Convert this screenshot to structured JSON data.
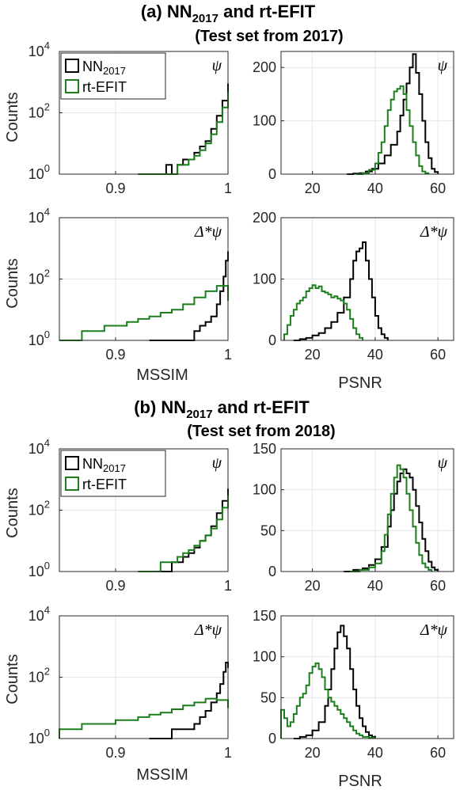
{
  "sections": [
    {
      "title_main": "(a) NN",
      "title_sub": "2017",
      "title_rest": " and rt-EFIT",
      "subtitle": "(Test set from 2017)"
    },
    {
      "title_main": "(b) NN",
      "title_sub": "2017",
      "title_rest": " and rt-EFIT",
      "subtitle": "(Test set from 2018)"
    }
  ],
  "legend": [
    {
      "label": "NN",
      "sub": "2017",
      "color": "#000000"
    },
    {
      "label": "rt-EFIT",
      "sub": "",
      "color": "#1a7f1a"
    }
  ],
  "axis_text": {
    "counts": "Counts",
    "mssim": "MSSIM",
    "psnr": "PSNR"
  },
  "chart_data": [
    {
      "id": "a-mssim-psi",
      "type": "histogram",
      "panel_label": "ψ",
      "yscale": "log",
      "xlim": [
        0.85,
        1.0
      ],
      "ylim": [
        1,
        10000
      ],
      "xticks": [
        {
          "v": 0.9,
          "t": "0.9"
        },
        {
          "v": 1.0,
          "t": "1"
        }
      ],
      "yticks": [
        {
          "v": 1,
          "b": "10",
          "e": "0"
        },
        {
          "v": 100,
          "b": "10",
          "e": "2"
        },
        {
          "v": 10000,
          "b": "10",
          "e": "4"
        }
      ],
      "legend": true,
      "grid": true,
      "series": [
        {
          "name": "NN2017",
          "color": "#000000",
          "x": [
            0.92,
            0.925,
            0.93,
            0.935,
            0.94,
            0.945,
            0.95,
            0.955,
            0.96,
            0.965,
            0.97,
            0.975,
            0.98,
            0.985,
            0.99,
            0.995,
            1.0
          ],
          "y": [
            1,
            1,
            1,
            1,
            1,
            2,
            1,
            2,
            3,
            3,
            5,
            8,
            12,
            30,
            80,
            250,
            900
          ]
        },
        {
          "name": "rt-EFIT",
          "color": "#1a7f1a",
          "x": [
            0.92,
            0.93,
            0.94,
            0.95,
            0.955,
            0.96,
            0.965,
            0.97,
            0.975,
            0.98,
            0.985,
            0.99,
            0.995,
            1.0
          ],
          "y": [
            1,
            1,
            1,
            1,
            2,
            2,
            3,
            4,
            6,
            10,
            20,
            50,
            150,
            500
          ]
        }
      ]
    },
    {
      "id": "a-psnr-psi",
      "type": "histogram",
      "panel_label": "ψ",
      "yscale": "linear",
      "xlim": [
        10,
        65
      ],
      "ylim": [
        0,
        230
      ],
      "xticks": [
        {
          "v": 20,
          "t": "20"
        },
        {
          "v": 40,
          "t": "40"
        },
        {
          "v": 60,
          "t": "60"
        }
      ],
      "yticks": [
        {
          "v": 0,
          "t": "0"
        },
        {
          "v": 100,
          "t": "100"
        },
        {
          "v": 200,
          "t": "200"
        }
      ],
      "legend": false,
      "grid": true,
      "series": [
        {
          "name": "NN2017",
          "color": "#000000",
          "x": [
            31,
            33,
            35,
            37,
            39,
            41,
            43,
            45,
            47,
            48,
            49,
            50,
            51,
            52,
            53,
            54,
            55,
            56,
            57,
            58,
            59,
            60
          ],
          "y": [
            0,
            1,
            2,
            5,
            10,
            20,
            35,
            55,
            80,
            110,
            140,
            170,
            200,
            225,
            190,
            150,
            100,
            60,
            30,
            10,
            4,
            0
          ]
        },
        {
          "name": "rt-EFIT",
          "color": "#1a7f1a",
          "x": [
            34,
            36,
            38,
            40,
            41,
            42,
            43,
            44,
            45,
            46,
            47,
            48,
            49,
            50,
            51,
            52,
            53,
            54,
            55,
            56,
            57
          ],
          "y": [
            0,
            2,
            8,
            20,
            40,
            60,
            90,
            120,
            140,
            155,
            160,
            165,
            150,
            120,
            90,
            60,
            35,
            15,
            5,
            2,
            0
          ]
        }
      ]
    },
    {
      "id": "a-mssim-dpsi",
      "type": "histogram",
      "panel_label": "Δ*ψ",
      "yscale": "log",
      "xlim": [
        0.85,
        1.0
      ],
      "ylim": [
        1,
        10000
      ],
      "xticks": [
        {
          "v": 0.9,
          "t": "0.9"
        },
        {
          "v": 1.0,
          "t": "1"
        }
      ],
      "yticks": [
        {
          "v": 1,
          "b": "10",
          "e": "0"
        },
        {
          "v": 100,
          "b": "10",
          "e": "2"
        },
        {
          "v": 10000,
          "b": "10",
          "e": "4"
        }
      ],
      "legend": false,
      "grid": true,
      "series": [
        {
          "name": "NN2017",
          "color": "#000000",
          "x": [
            0.93,
            0.94,
            0.95,
            0.96,
            0.97,
            0.975,
            0.98,
            0.985,
            0.99,
            0.993,
            0.996,
            0.998,
            1.0
          ],
          "y": [
            1,
            1,
            1,
            1,
            2,
            3,
            4,
            6,
            15,
            40,
            120,
            400,
            800
          ]
        },
        {
          "name": "rt-EFIT",
          "color": "#1a7f1a",
          "x": [
            0.85,
            0.86,
            0.87,
            0.88,
            0.89,
            0.9,
            0.91,
            0.92,
            0.93,
            0.94,
            0.95,
            0.96,
            0.97,
            0.98,
            0.99,
            1.0
          ],
          "y": [
            1,
            1,
            2,
            2,
            3,
            3,
            4,
            5,
            6,
            8,
            10,
            15,
            25,
            40,
            60,
            20
          ]
        }
      ]
    },
    {
      "id": "a-psnr-dpsi",
      "type": "histogram",
      "panel_label": "Δ*ψ",
      "yscale": "linear",
      "xlim": [
        10,
        65
      ],
      "ylim": [
        0,
        200
      ],
      "xticks": [
        {
          "v": 20,
          "t": "20"
        },
        {
          "v": 40,
          "t": "40"
        },
        {
          "v": 60,
          "t": "60"
        }
      ],
      "yticks": [
        {
          "v": 0,
          "t": "0"
        },
        {
          "v": 100,
          "t": "100"
        },
        {
          "v": 200,
          "t": "200"
        }
      ],
      "legend": false,
      "grid": true,
      "series": [
        {
          "name": "NN2017",
          "color": "#000000",
          "x": [
            14,
            16,
            18,
            20,
            22,
            24,
            26,
            28,
            30,
            32,
            33,
            34,
            35,
            36,
            37,
            38,
            39,
            40,
            41,
            42,
            43,
            44
          ],
          "y": [
            0,
            2,
            4,
            8,
            12,
            20,
            30,
            45,
            70,
            100,
            130,
            145,
            150,
            160,
            130,
            100,
            70,
            40,
            20,
            10,
            4,
            0
          ]
        },
        {
          "name": "rt-EFIT",
          "color": "#1a7f1a",
          "x": [
            11,
            12,
            13,
            14,
            15,
            16,
            17,
            18,
            19,
            20,
            21,
            22,
            23,
            24,
            25,
            26,
            27,
            28,
            29,
            30,
            31,
            32,
            33,
            34,
            35,
            36
          ],
          "y": [
            10,
            25,
            40,
            50,
            60,
            65,
            70,
            80,
            85,
            90,
            85,
            88,
            80,
            78,
            75,
            70,
            72,
            68,
            65,
            60,
            50,
            35,
            20,
            10,
            4,
            0
          ]
        }
      ]
    },
    {
      "id": "b-mssim-psi",
      "type": "histogram",
      "panel_label": "ψ",
      "yscale": "log",
      "xlim": [
        0.85,
        1.0
      ],
      "ylim": [
        1,
        10000
      ],
      "xticks": [
        {
          "v": 0.9,
          "t": "0.9"
        },
        {
          "v": 1.0,
          "t": "1"
        }
      ],
      "yticks": [
        {
          "v": 1,
          "b": "10",
          "e": "0"
        },
        {
          "v": 100,
          "b": "10",
          "e": "2"
        },
        {
          "v": 10000,
          "b": "10",
          "e": "4"
        }
      ],
      "legend": true,
      "grid": true,
      "series": [
        {
          "name": "NN2017",
          "color": "#000000",
          "x": [
            0.93,
            0.94,
            0.95,
            0.96,
            0.965,
            0.97,
            0.975,
            0.98,
            0.985,
            0.99,
            0.995,
            1.0
          ],
          "y": [
            1,
            1,
            2,
            3,
            4,
            6,
            10,
            15,
            30,
            80,
            200,
            500
          ]
        },
        {
          "name": "rt-EFIT",
          "color": "#1a7f1a",
          "x": [
            0.92,
            0.93,
            0.94,
            0.95,
            0.955,
            0.96,
            0.965,
            0.97,
            0.975,
            0.98,
            0.985,
            0.99,
            0.995,
            1.0
          ],
          "y": [
            1,
            1,
            2,
            2,
            3,
            4,
            5,
            7,
            10,
            15,
            25,
            50,
            120,
            300
          ]
        }
      ]
    },
    {
      "id": "b-psnr-psi",
      "type": "histogram",
      "panel_label": "ψ",
      "yscale": "linear",
      "xlim": [
        10,
        65
      ],
      "ylim": [
        0,
        150
      ],
      "xticks": [
        {
          "v": 20,
          "t": "20"
        },
        {
          "v": 40,
          "t": "40"
        },
        {
          "v": 60,
          "t": "60"
        }
      ],
      "yticks": [
        {
          "v": 0,
          "t": "0"
        },
        {
          "v": 50,
          "t": "50"
        },
        {
          "v": 100,
          "t": "100"
        },
        {
          "v": 150,
          "t": "150"
        }
      ],
      "legend": false,
      "grid": true,
      "series": [
        {
          "name": "NN2017",
          "color": "#000000",
          "x": [
            30,
            33,
            36,
            38,
            40,
            42,
            44,
            45,
            46,
            47,
            48,
            49,
            50,
            51,
            52,
            53,
            54,
            55,
            56,
            57,
            58,
            59,
            60
          ],
          "y": [
            0,
            2,
            4,
            8,
            15,
            30,
            55,
            75,
            95,
            110,
            120,
            125,
            120,
            115,
            100,
            80,
            60,
            40,
            25,
            12,
            5,
            2,
            0
          ]
        },
        {
          "name": "rt-EFIT",
          "color": "#1a7f1a",
          "x": [
            32,
            35,
            38,
            40,
            42,
            43,
            44,
            45,
            46,
            47,
            48,
            49,
            50,
            51,
            52,
            53,
            54,
            55,
            56,
            57,
            58
          ],
          "y": [
            0,
            2,
            5,
            10,
            25,
            45,
            70,
            95,
            115,
            130,
            125,
            115,
            95,
            75,
            55,
            35,
            20,
            10,
            5,
            2,
            0
          ]
        }
      ]
    },
    {
      "id": "b-mssim-dpsi",
      "type": "histogram",
      "panel_label": "Δ*ψ",
      "yscale": "log",
      "xlim": [
        0.85,
        1.0
      ],
      "ylim": [
        1,
        10000
      ],
      "xticks": [
        {
          "v": 0.9,
          "t": "0.9"
        },
        {
          "v": 1.0,
          "t": "1"
        }
      ],
      "yticks": [
        {
          "v": 1,
          "b": "10",
          "e": "0"
        },
        {
          "v": 100,
          "b": "10",
          "e": "2"
        },
        {
          "v": 10000,
          "b": "10",
          "e": "4"
        }
      ],
      "legend": false,
      "grid": true,
      "series": [
        {
          "name": "NN2017",
          "color": "#000000",
          "x": [
            0.93,
            0.94,
            0.95,
            0.96,
            0.97,
            0.975,
            0.98,
            0.985,
            0.99,
            0.993,
            0.996,
            0.998,
            1.0
          ],
          "y": [
            1,
            1,
            2,
            2,
            3,
            5,
            8,
            15,
            30,
            60,
            150,
            300,
            200
          ]
        },
        {
          "name": "rt-EFIT",
          "color": "#1a7f1a",
          "x": [
            0.85,
            0.86,
            0.87,
            0.88,
            0.89,
            0.9,
            0.91,
            0.92,
            0.93,
            0.94,
            0.95,
            0.96,
            0.97,
            0.98,
            0.99,
            1.0
          ],
          "y": [
            2,
            2,
            3,
            3,
            3,
            4,
            4,
            5,
            6,
            7,
            9,
            12,
            15,
            20,
            18,
            10
          ]
        }
      ]
    },
    {
      "id": "b-psnr-dpsi",
      "type": "histogram",
      "panel_label": "Δ*ψ",
      "yscale": "linear",
      "xlim": [
        10,
        65
      ],
      "ylim": [
        0,
        150
      ],
      "xticks": [
        {
          "v": 20,
          "t": "20"
        },
        {
          "v": 40,
          "t": "40"
        },
        {
          "v": 60,
          "t": "60"
        }
      ],
      "yticks": [
        {
          "v": 0,
          "t": "0"
        },
        {
          "v": 50,
          "t": "50"
        },
        {
          "v": 100,
          "t": "100"
        },
        {
          "v": 150,
          "t": "150"
        }
      ],
      "legend": false,
      "grid": true,
      "series": [
        {
          "name": "NN2017",
          "color": "#000000",
          "x": [
            14,
            16,
            18,
            20,
            22,
            24,
            25,
            26,
            27,
            28,
            29,
            30,
            31,
            32,
            33,
            34,
            35,
            36,
            37,
            38,
            39,
            40
          ],
          "y": [
            0,
            2,
            4,
            10,
            20,
            40,
            60,
            85,
            110,
            130,
            138,
            125,
            110,
            85,
            60,
            40,
            25,
            15,
            8,
            4,
            2,
            0
          ]
        },
        {
          "name": "rt-EFIT",
          "color": "#1a7f1a",
          "x": [
            10,
            11,
            12,
            13,
            14,
            15,
            16,
            17,
            18,
            19,
            20,
            21,
            22,
            23,
            24,
            25,
            26,
            27,
            28,
            29,
            30,
            31,
            32,
            33,
            34,
            35,
            36,
            38,
            40
          ],
          "y": [
            35,
            25,
            15,
            20,
            30,
            40,
            50,
            55,
            65,
            80,
            88,
            92,
            85,
            75,
            60,
            50,
            45,
            40,
            35,
            30,
            25,
            20,
            15,
            10,
            6,
            4,
            2,
            1,
            0
          ]
        }
      ]
    }
  ]
}
